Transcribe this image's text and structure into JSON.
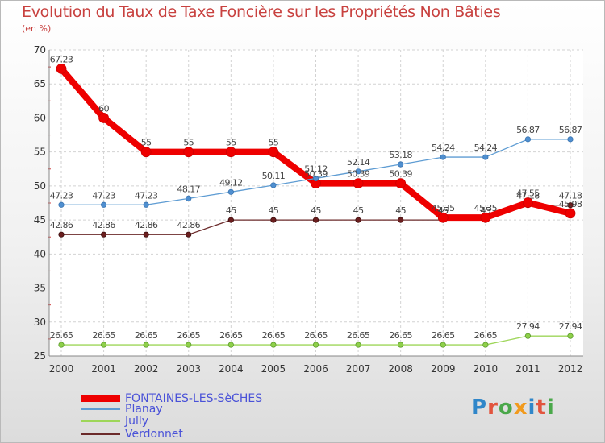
{
  "header": {
    "title": "Evolution du Taux de Taxe Foncière sur les Propriétés Non Bâties",
    "subtitle": "(en %)"
  },
  "chart_data": {
    "type": "line",
    "title": "Evolution du Taux de Taxe Foncière sur les Propriétés Non Bâties",
    "ylabel": "(en %)",
    "xlabel": "",
    "ylim": [
      25,
      70
    ],
    "yticks": [
      25,
      30,
      35,
      40,
      45,
      50,
      55,
      60,
      65,
      70
    ],
    "categories": [
      "2000",
      "2001",
      "2002",
      "2003",
      "2004",
      "2005",
      "2006",
      "2007",
      "2008",
      "2009",
      "2010",
      "2011",
      "2012"
    ],
    "series": [
      {
        "name": "FONTAINES-LES-SèCHES",
        "color": "#ee0000",
        "values": [
          67.23,
          60,
          55,
          55,
          55,
          55,
          50.39,
          50.39,
          50.39,
          45.35,
          45.35,
          47.55,
          45.98
        ],
        "labels": [
          "67.23",
          "60",
          "55",
          "55",
          "55",
          "55",
          "50.39",
          "50.39",
          "50.39",
          "45.35",
          "45.35",
          "47.55",
          "45.98"
        ]
      },
      {
        "name": "Planay",
        "color": "#5e9cd3",
        "values": [
          47.23,
          47.23,
          47.23,
          48.17,
          49.12,
          50.11,
          51.12,
          52.14,
          53.18,
          54.24,
          54.24,
          56.87,
          56.87
        ],
        "labels": [
          "47.23",
          "47.23",
          "47.23",
          "48.17",
          "49.12",
          "50.11",
          "51.12",
          "52.14",
          "53.18",
          "54.24",
          "54.24",
          "56.87",
          "56.87"
        ]
      },
      {
        "name": "Jully",
        "color": "#9ed659",
        "values": [
          26.65,
          26.65,
          26.65,
          26.65,
          26.65,
          26.65,
          26.65,
          26.65,
          26.65,
          26.65,
          26.65,
          27.94,
          27.94
        ],
        "labels": [
          "26.65",
          "26.65",
          "26.65",
          "26.65",
          "26.65",
          "26.65",
          "26.65",
          "26.65",
          "26.65",
          "26.65",
          "26.65",
          "27.94",
          "27.94"
        ]
      },
      {
        "name": "Verdonnet",
        "color": "#6b2a2a",
        "values": [
          42.86,
          42.86,
          42.86,
          42.86,
          45,
          45,
          45,
          45,
          45,
          45,
          45,
          47.18,
          47.18
        ],
        "labels": [
          "42.86",
          "42.86",
          "42.86",
          "42.86",
          "45",
          "45",
          "45",
          "45",
          "45",
          "45",
          "45",
          "47.18",
          "47.18"
        ]
      }
    ],
    "legend": "bottom-left"
  },
  "legend": {
    "items": [
      {
        "label": "FONTAINES-LES-SèCHES"
      },
      {
        "label": "Planay"
      },
      {
        "label": "Jully"
      },
      {
        "label": "Verdonnet"
      }
    ]
  },
  "logo": {
    "p": "P",
    "r": "r",
    "o": "o",
    "x": "x",
    "i1": "i",
    "t": "t",
    "i2": "i"
  }
}
